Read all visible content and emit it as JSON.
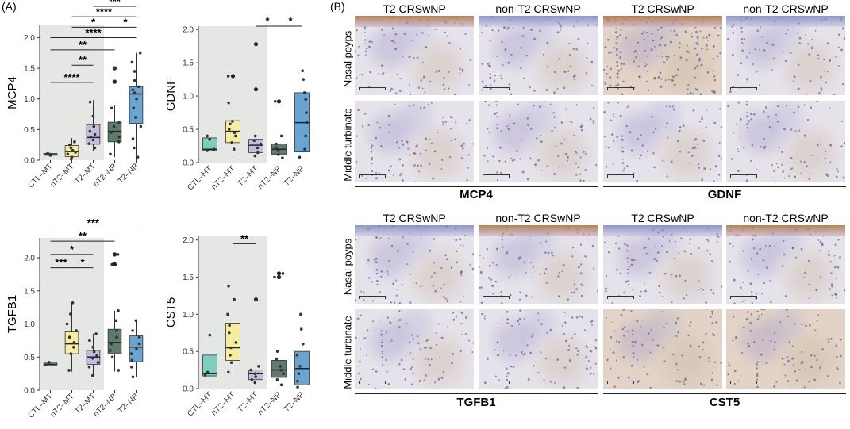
{
  "panel_labels": {
    "a": "(A)",
    "b": "(B)"
  },
  "colors": {
    "CTL-MT": "#7ecdbe",
    "nT2-MT": "#f6eda2",
    "T2-MT": "#c7bce0",
    "nT2-NP": "#5e7b6c",
    "T2-NP": "#6aa4d2",
    "shade": "#e5e7e5",
    "eosin": "#d9c9c6",
    "hematoxylin": "#9aa3cc",
    "brown": "#b07a4a"
  },
  "chart_data": [
    {
      "type": "box",
      "ylabel": "MCP4",
      "ylim": [
        0,
        2.2
      ],
      "yticks": [
        "0.0",
        "0.5",
        "1.0",
        "1.5",
        "2.0"
      ],
      "categories": [
        "CTL–MT",
        "nT2–MT",
        "T2–MT",
        "nT2–NP",
        "T2–NP"
      ],
      "boxes": [
        {
          "min": 0.07,
          "q1": 0.08,
          "median": 0.09,
          "q3": 0.11,
          "max": 0.12,
          "outliers": []
        },
        {
          "min": 0.01,
          "q1": 0.06,
          "median": 0.14,
          "q3": 0.24,
          "max": 0.36,
          "outliers": []
        },
        {
          "min": 0.15,
          "q1": 0.26,
          "median": 0.37,
          "q3": 0.58,
          "max": 0.98,
          "outliers": []
        },
        {
          "min": 0.05,
          "q1": 0.3,
          "median": 0.47,
          "q3": 0.62,
          "max": 0.9,
          "outliers": [
            1.28,
            1.5
          ]
        },
        {
          "min": 0.0,
          "q1": 0.6,
          "median": 1.08,
          "q3": 1.2,
          "max": 1.75,
          "outliers": []
        }
      ],
      "points": [
        [
          0.08,
          0.09,
          0.1,
          0.11
        ],
        [
          0.02,
          0.05,
          0.1,
          0.13,
          0.16,
          0.2,
          0.25,
          0.3
        ],
        [
          0.2,
          0.27,
          0.33,
          0.38,
          0.42,
          0.47,
          0.55,
          0.72,
          0.95
        ],
        [
          0.1,
          0.3,
          0.38,
          0.45,
          0.55,
          0.62,
          0.85,
          1.28,
          1.5
        ],
        [
          0.05,
          0.2,
          0.35,
          0.55,
          0.7,
          0.85,
          1.0,
          1.1,
          1.15,
          1.2,
          1.3,
          1.45,
          1.6,
          1.75
        ]
      ],
      "shade_to": 3,
      "signif": [
        {
          "from": 0,
          "to": 2,
          "label": "****",
          "y": 1.27
        },
        {
          "from": 1,
          "to": 2,
          "label": "**",
          "y": 1.55
        },
        {
          "from": 0,
          "to": 3,
          "label": "**",
          "y": 1.8
        },
        {
          "from": 0,
          "to": 4,
          "label": "****",
          "y": 2.0
        },
        {
          "from": 1,
          "to": 3,
          "label": "*",
          "y": 2.17
        },
        {
          "from": 3,
          "to": 4,
          "label": "*",
          "y": 2.17
        },
        {
          "from": 1,
          "to": 4,
          "label": "****",
          "y": 2.34
        },
        {
          "from": 2,
          "to": 4,
          "label": "***",
          "y": 2.51
        }
      ]
    },
    {
      "type": "box",
      "ylabel": "GDNF",
      "ylim": [
        0,
        2.05
      ],
      "yticks": [
        "0.0",
        "0.5",
        "1.0",
        "1.5",
        "2.0"
      ],
      "categories": [
        "CTL–MT",
        "nT2–MT",
        "T2–MT",
        "nT2–NP",
        "T2–NP"
      ],
      "boxes": [
        {
          "min": 0.17,
          "q1": 0.18,
          "median": 0.2,
          "q3": 0.37,
          "max": 0.42,
          "outliers": []
        },
        {
          "min": 0.15,
          "q1": 0.3,
          "median": 0.47,
          "q3": 0.63,
          "max": 1.01,
          "outliers": [
            1.3
          ]
        },
        {
          "min": 0.07,
          "q1": 0.15,
          "median": 0.26,
          "q3": 0.35,
          "max": 0.43,
          "outliers": [
            1.1,
            1.78
          ]
        },
        {
          "min": 0.05,
          "q1": 0.12,
          "median": 0.2,
          "q3": 0.28,
          "max": 0.45,
          "outliers": [
            0.92
          ]
        },
        {
          "min": 0.0,
          "q1": 0.16,
          "median": 0.6,
          "q3": 1.05,
          "max": 1.38,
          "outliers": []
        }
      ],
      "points": [
        [
          0.18,
          0.2,
          0.35,
          0.4
        ],
        [
          0.2,
          0.3,
          0.4,
          0.45,
          0.5,
          0.58,
          0.62,
          0.9,
          1.3
        ],
        [
          0.1,
          0.15,
          0.22,
          0.28,
          0.33,
          0.4,
          1.1,
          1.78
        ],
        [
          0.07,
          0.12,
          0.18,
          0.22,
          0.28,
          0.4,
          0.92
        ],
        [
          0.08,
          0.2,
          0.4,
          0.6,
          0.75,
          0.95,
          1.05,
          1.25,
          1.38
        ]
      ],
      "shade_to": 3,
      "signif": [
        {
          "from": 2,
          "to": 3,
          "label": "*",
          "y": 2.05
        },
        {
          "from": 3,
          "to": 4,
          "label": "*",
          "y": 2.05
        }
      ]
    },
    {
      "type": "box",
      "ylabel": "TGFB1",
      "ylim": [
        0,
        2.3
      ],
      "yticks": [
        "0.0",
        "0.5",
        "1.0",
        "1.5",
        "2.0"
      ],
      "categories": [
        "CTL–MT",
        "nT2–MT",
        "T2–MT",
        "nT2–NP",
        "T2–NP"
      ],
      "boxes": [
        {
          "min": 0.38,
          "q1": 0.38,
          "median": 0.39,
          "q3": 0.41,
          "max": 0.43,
          "outliers": []
        },
        {
          "min": 0.28,
          "q1": 0.55,
          "median": 0.7,
          "q3": 0.88,
          "max": 1.32,
          "outliers": []
        },
        {
          "min": 0.2,
          "q1": 0.39,
          "median": 0.5,
          "q3": 0.6,
          "max": 0.85,
          "outliers": []
        },
        {
          "min": 0.28,
          "q1": 0.55,
          "median": 0.72,
          "q3": 0.92,
          "max": 1.2,
          "outliers": [
            1.9,
            2.05
          ]
        },
        {
          "min": 0.2,
          "q1": 0.43,
          "median": 0.65,
          "q3": 0.82,
          "max": 1.05,
          "outliers": []
        }
      ],
      "points": [
        [
          0.38,
          0.4,
          0.42
        ],
        [
          0.3,
          0.55,
          0.65,
          0.72,
          0.8,
          0.9,
          1.0,
          1.15,
          1.32
        ],
        [
          0.22,
          0.35,
          0.42,
          0.48,
          0.52,
          0.58,
          0.65,
          0.75,
          0.85
        ],
        [
          0.3,
          0.5,
          0.6,
          0.7,
          0.8,
          0.9,
          1.05,
          1.2,
          1.9,
          2.05
        ],
        [
          0.2,
          0.35,
          0.45,
          0.55,
          0.62,
          0.7,
          0.8,
          0.9,
          1.05
        ]
      ],
      "shade_to": 3,
      "signif": [
        {
          "from": 0,
          "to": 1,
          "label": "***",
          "y": 1.85
        },
        {
          "from": 1,
          "to": 2,
          "label": "*",
          "y": 1.85
        },
        {
          "from": 0,
          "to": 2,
          "label": "*",
          "y": 2.05
        },
        {
          "from": 0,
          "to": 3,
          "label": "**",
          "y": 2.25
        },
        {
          "from": 0,
          "to": 4,
          "label": "***",
          "y": 2.45
        }
      ]
    },
    {
      "type": "box",
      "ylabel": "CST5",
      "ylim": [
        0,
        2.05
      ],
      "yticks": [
        "0.0",
        "0.5",
        "1.0",
        "1.5",
        "2.0"
      ],
      "categories": [
        "CTL–MT",
        "nT2–MT",
        "T2–MT",
        "nT2–NP",
        "T2–NP"
      ],
      "boxes": [
        {
          "min": 0.17,
          "q1": 0.17,
          "median": 0.2,
          "q3": 0.45,
          "max": 0.72,
          "outliers": []
        },
        {
          "min": 0.2,
          "q1": 0.38,
          "median": 0.55,
          "q3": 0.88,
          "max": 1.38,
          "outliers": []
        },
        {
          "min": 0.08,
          "q1": 0.12,
          "median": 0.2,
          "q3": 0.25,
          "max": 0.35,
          "outliers": [
            1.2
          ]
        },
        {
          "min": 0.05,
          "q1": 0.15,
          "median": 0.25,
          "q3": 0.38,
          "max": 0.6,
          "outliers": [
            1.5,
            1.55
          ]
        },
        {
          "min": 0.0,
          "q1": 0.05,
          "median": 0.27,
          "q3": 0.5,
          "max": 1.05,
          "outliers": []
        }
      ],
      "points": [
        [
          0.18,
          0.22,
          0.72
        ],
        [
          0.22,
          0.35,
          0.45,
          0.55,
          0.62,
          0.75,
          0.85,
          1.0,
          1.2,
          1.38
        ],
        [
          0.08,
          0.12,
          0.16,
          0.2,
          0.25,
          0.3,
          1.2
        ],
        [
          0.05,
          0.12,
          0.2,
          0.25,
          0.3,
          0.4,
          0.5,
          1.5,
          1.55
        ],
        [
          0.02,
          0.1,
          0.2,
          0.3,
          0.45,
          0.6,
          0.8,
          1.0
        ]
      ],
      "shade_to": 3,
      "signif": [
        {
          "from": 1,
          "to": 2,
          "label": "**",
          "y": 1.95
        }
      ]
    }
  ],
  "histology": {
    "columns": [
      "T2 CRSwNP",
      "non-T2 CRSwNP",
      "T2 CRSwNP",
      "non-T2 CRSwNP"
    ],
    "row_labels": [
      "Nasal poyps",
      "Middle turbinate"
    ],
    "genes_top": [
      "MCP4",
      "GDNF"
    ],
    "genes_bottom": [
      "TGFB1",
      "CST5"
    ]
  }
}
